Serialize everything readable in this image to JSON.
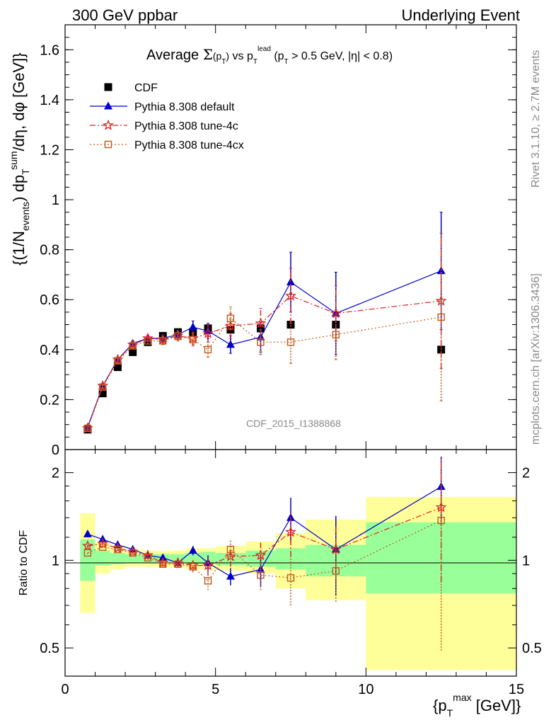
{
  "header": {
    "left": "300 GeV ppbar",
    "right": "Underlying Event"
  },
  "side": {
    "rivet": "Rivet 3.1.10, ≥ 2.7M events",
    "mcplots": "mcplots.cern.ch [arXiv:1306.3436]"
  },
  "analysis_id": "CDF_2015_I1388868",
  "colors": {
    "cdf": "#000000",
    "default": "#0000cc",
    "tune4c": "#dd2222",
    "tune4cx": "#c05a1a",
    "band_inner": "#99ff99",
    "band_outer": "#ffff99"
  },
  "chart_data": [
    {
      "type": "scatter",
      "title": "Average Σ(p_T) vs p_T^lead (p_T > 0.5 GeV, |η| < 0.8)",
      "ylabel": "{(1/N_events) dp_T^sum/dη, dφ [GeV]}",
      "xlim": [
        0,
        15
      ],
      "ylim": [
        0,
        1.7
      ],
      "yticks": [
        0,
        0.2,
        0.4,
        0.6,
        0.8,
        1,
        1.2,
        1.4,
        1.6
      ],
      "legend": [
        "CDF",
        "Pythia 8.308 default",
        "Pythia 8.308 tune-4c",
        "Pythia 8.308 tune-4cx"
      ],
      "legend_position": "top-left",
      "x": [
        0.75,
        1.25,
        1.75,
        2.25,
        2.75,
        3.25,
        3.75,
        4.25,
        4.75,
        5.5,
        6.5,
        7.5,
        9.0,
        12.5
      ],
      "series": [
        {
          "name": "CDF",
          "marker": "square",
          "line": "none",
          "values": [
            0.08,
            0.225,
            0.33,
            0.39,
            0.43,
            0.455,
            0.47,
            0.47,
            0.485,
            0.48,
            0.485,
            0.5,
            0.5,
            0.4
          ]
        },
        {
          "name": "Pythia 8.308 default",
          "marker": "triangle",
          "line": "solid",
          "values": [
            0.09,
            0.255,
            0.36,
            0.425,
            0.445,
            0.445,
            0.46,
            0.49,
            0.475,
            0.42,
            0.45,
            0.67,
            0.545,
            0.715
          ],
          "errors": [
            0.005,
            0.008,
            0.01,
            0.01,
            0.012,
            0.015,
            0.02,
            0.025,
            0.03,
            0.035,
            0.06,
            0.12,
            0.165,
            0.235
          ]
        },
        {
          "name": "Pythia 8.308 tune-4c",
          "marker": "star",
          "line": "dashdot",
          "values": [
            0.085,
            0.255,
            0.36,
            0.42,
            0.445,
            0.44,
            0.455,
            0.445,
            0.465,
            0.495,
            0.505,
            0.615,
            0.545,
            0.595
          ],
          "errors": [
            0.005,
            0.008,
            0.01,
            0.01,
            0.012,
            0.015,
            0.02,
            0.025,
            0.035,
            0.05,
            0.06,
            0.11,
            0.11,
            0.27
          ]
        },
        {
          "name": "Pythia 8.308 tune-4cx",
          "marker": "open-square",
          "line": "dotted",
          "values": [
            0.085,
            0.25,
            0.355,
            0.415,
            0.435,
            0.435,
            0.455,
            0.44,
            0.4,
            0.525,
            0.43,
            0.43,
            0.46,
            0.53
          ],
          "errors": [
            0.005,
            0.008,
            0.01,
            0.01,
            0.012,
            0.015,
            0.02,
            0.025,
            0.03,
            0.045,
            0.05,
            0.085,
            0.1,
            0.335
          ]
        }
      ]
    },
    {
      "type": "scatter",
      "ylabel": "Ratio to CDF",
      "xlabel": "{p_T^max [GeV]}",
      "xlim": [
        0,
        15
      ],
      "ylim": [
        0.4,
        2.4
      ],
      "yscale": "log",
      "yticks": [
        0.5,
        1,
        2
      ],
      "xticks": [
        0,
        5,
        10,
        15
      ],
      "bins": [
        [
          0.5,
          1.0
        ],
        [
          1.0,
          1.5
        ],
        [
          1.5,
          2.0
        ],
        [
          2.0,
          2.5
        ],
        [
          2.5,
          3.0
        ],
        [
          3.0,
          3.5
        ],
        [
          3.5,
          4.0
        ],
        [
          4.0,
          4.5
        ],
        [
          4.5,
          5.0
        ],
        [
          5.0,
          6.0
        ],
        [
          6.0,
          7.0
        ],
        [
          7.0,
          8.0
        ],
        [
          8.0,
          10.0
        ],
        [
          10.0,
          15.0
        ]
      ],
      "band_inner": [
        [
          0.85,
          1.18
        ],
        [
          0.96,
          1.08
        ],
        [
          0.97,
          1.06
        ],
        [
          0.98,
          1.05
        ],
        [
          0.98,
          1.05
        ],
        [
          0.98,
          1.05
        ],
        [
          0.98,
          1.05
        ],
        [
          0.97,
          1.06
        ],
        [
          0.97,
          1.07
        ],
        [
          0.96,
          1.06
        ],
        [
          0.95,
          1.08
        ],
        [
          0.93,
          1.1
        ],
        [
          0.88,
          1.13
        ],
        [
          0.77,
          1.35
        ]
      ],
      "band_outer": [
        [
          0.66,
          1.45
        ],
        [
          0.9,
          1.15
        ],
        [
          0.93,
          1.1
        ],
        [
          0.95,
          1.08
        ],
        [
          0.95,
          1.08
        ],
        [
          0.95,
          1.08
        ],
        [
          0.95,
          1.08
        ],
        [
          0.93,
          1.1
        ],
        [
          0.93,
          1.1
        ],
        [
          0.92,
          1.12
        ],
        [
          0.9,
          1.16
        ],
        [
          0.8,
          1.24
        ],
        [
          0.73,
          1.38
        ],
        [
          0.42,
          1.65
        ]
      ],
      "series": [
        {
          "name": "Pythia 8.308 default",
          "values": [
            1.23,
            1.18,
            1.13,
            1.09,
            1.04,
            1.02,
            0.98,
            1.08,
            0.98,
            0.88,
            0.93,
            1.4,
            1.09,
            1.79
          ],
          "errors": [
            0.01,
            0.01,
            0.01,
            0.01,
            0.015,
            0.02,
            0.03,
            0.04,
            0.06,
            0.06,
            0.12,
            0.24,
            0.33,
            0.48
          ]
        },
        {
          "name": "Pythia 8.308 tune-4c",
          "values": [
            1.12,
            1.14,
            1.1,
            1.07,
            1.04,
            0.98,
            0.98,
            0.96,
            0.96,
            1.03,
            1.04,
            1.25,
            1.09,
            1.52
          ],
          "errors": [
            0.01,
            0.01,
            0.01,
            0.01,
            0.015,
            0.02,
            0.03,
            0.04,
            0.07,
            0.08,
            0.12,
            0.22,
            0.22,
            0.68
          ]
        },
        {
          "name": "Pythia 8.308 tune-4cx",
          "values": [
            1.06,
            1.11,
            1.09,
            1.06,
            1.02,
            0.97,
            0.97,
            0.95,
            0.85,
            1.09,
            0.89,
            0.87,
            0.92,
            1.37
          ],
          "errors": [
            0.01,
            0.01,
            0.01,
            0.01,
            0.015,
            0.02,
            0.03,
            0.04,
            0.06,
            0.08,
            0.1,
            0.17,
            0.2,
            0.88
          ]
        }
      ]
    }
  ]
}
